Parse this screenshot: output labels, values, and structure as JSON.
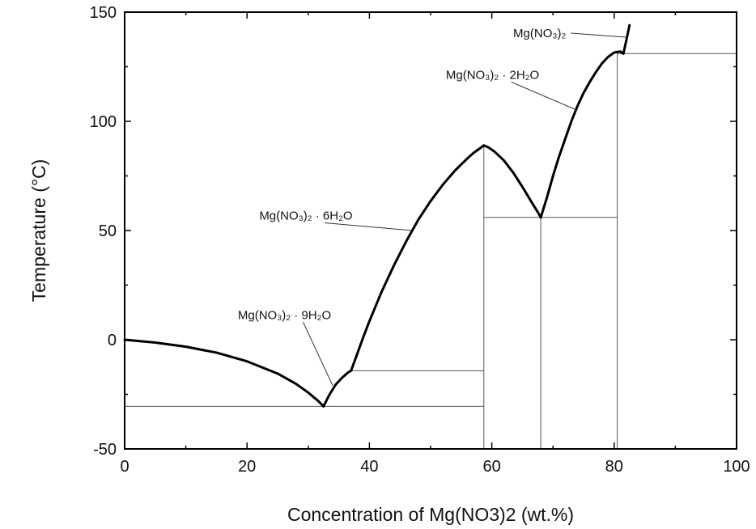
{
  "chart_data": {
    "type": "line",
    "xlabel": "Concentration of Mg(NO3)2 (wt.%)",
    "ylabel": "Temperature (°C)",
    "xlim": [
      0,
      100
    ],
    "ylim": [
      -50,
      150
    ],
    "x_ticks": [
      0,
      20,
      40,
      60,
      80,
      100
    ],
    "y_ticks": [
      -50,
      0,
      50,
      100,
      150
    ],
    "grid": false,
    "series": [
      {
        "label": "Mg(NO₃)₂ · 9H₂O",
        "x": [
          0,
          5,
          10,
          15,
          20,
          25,
          28,
          30,
          31.5,
          32.5
        ],
        "y": [
          0,
          -1.3,
          -3.2,
          -5.9,
          -9.9,
          -15.5,
          -20.2,
          -24.2,
          -27.7,
          -30.5
        ]
      },
      {
        "label": "Mg(NO₃)₂ · 9H₂O",
        "x": [
          32.5,
          33.5,
          34.5,
          35.5,
          36.5,
          37
        ],
        "y": [
          -30.5,
          -25,
          -20.5,
          -17.5,
          -15,
          -14.2
        ]
      },
      {
        "label": "Mg(NO₃)₂ · 6H₂O",
        "x": [
          37,
          38,
          39,
          40,
          42,
          44,
          46,
          48,
          50,
          52,
          54,
          56,
          57,
          58,
          58.7,
          59.5,
          60.5,
          62,
          63.5,
          65,
          66.5,
          67.5,
          68
        ],
        "y": [
          -14.2,
          -6.5,
          1.2,
          8.5,
          22,
          34,
          45,
          55,
          63.5,
          71,
          77.5,
          83,
          85.5,
          87.5,
          89,
          88,
          86,
          82,
          76.5,
          70,
          63,
          58.5,
          56
        ]
      },
      {
        "label": "Mg(NO₃)₂ · 2H₂O",
        "x": [
          68,
          69,
          70,
          71,
          72,
          73,
          74,
          75,
          76,
          77,
          78,
          79,
          80,
          81,
          81.5
        ],
        "y": [
          56,
          65,
          75,
          84,
          92,
          100,
          107,
          113,
          118,
          122.5,
          126.5,
          129.5,
          131.5,
          132,
          131
        ]
      },
      {
        "label": "Mg(NO₃)₂",
        "x": [
          81.5,
          81.9,
          82.2,
          82.5
        ],
        "y": [
          131,
          136,
          140,
          144
        ]
      }
    ],
    "tie_lines": [
      {
        "x": [
          0,
          58.7
        ],
        "y": [
          -30.5,
          -30.5
        ]
      },
      {
        "x": [
          37,
          58.7
        ],
        "y": [
          -14.2,
          -14.2
        ]
      },
      {
        "x": [
          58.7,
          58.7
        ],
        "y": [
          -50,
          89
        ]
      },
      {
        "x": [
          58.7,
          80.5
        ],
        "y": [
          56,
          56
        ]
      },
      {
        "x": [
          68,
          68
        ],
        "y": [
          -50,
          56
        ]
      },
      {
        "x": [
          80.5,
          80.5
        ],
        "y": [
          -50,
          132
        ]
      },
      {
        "x": [
          80.5,
          100
        ],
        "y": [
          131,
          131
        ]
      }
    ],
    "annotations": [
      {
        "text": "Mg(NO₃)₂ · 9H₂O",
        "label_x": 18.5,
        "label_y": 9.5,
        "point_x": 34,
        "point_y": -21
      },
      {
        "text": "Mg(NO₃)₂ · 6H₂O",
        "label_x": 22,
        "label_y": 55,
        "point_x": 47,
        "point_y": 50
      },
      {
        "text": "Mg(NO₃)₂ · 2H₂O",
        "label_x": 52.5,
        "label_y": 119.5,
        "point_x": 74,
        "point_y": 105
      },
      {
        "text": "Mg(NO₃)₂",
        "label_x": 63.5,
        "label_y": 138.5,
        "point_x": 82,
        "point_y": 138.5
      }
    ]
  }
}
